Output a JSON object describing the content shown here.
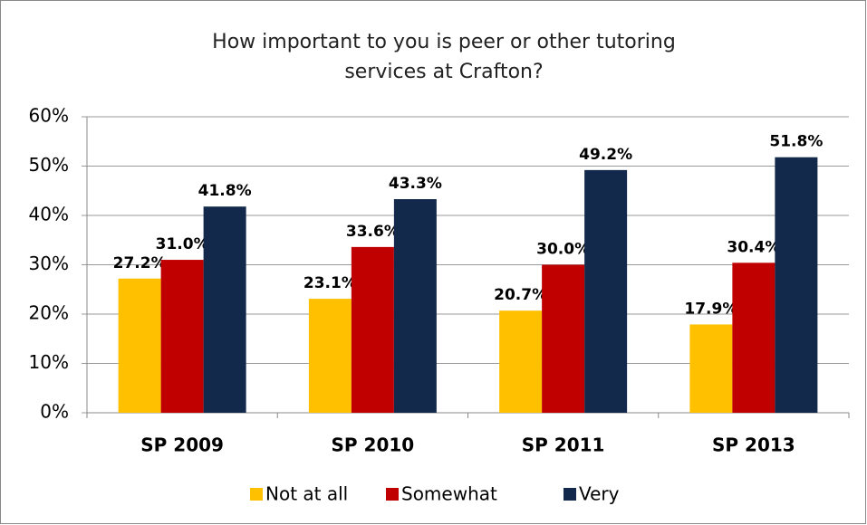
{
  "chart_data": {
    "type": "bar",
    "title": "How important to you is peer or other tutoring services at Crafton?",
    "categories": [
      "SP 2009",
      "SP 2010",
      "SP 2011",
      "SP 2013"
    ],
    "series": [
      {
        "name": "Not at all",
        "color": "#ffc000",
        "values": [
          27.2,
          23.1,
          20.7,
          17.9
        ],
        "value_labels": [
          "27.2%",
          "23.1%",
          "20.7%",
          "17.9%"
        ]
      },
      {
        "name": "Somewhat",
        "color": "#c00000",
        "values": [
          31.0,
          33.6,
          30.0,
          30.4
        ],
        "value_labels": [
          "31.0%",
          "33.6%",
          "30.0%",
          "30.4%"
        ]
      },
      {
        "name": "Very",
        "color": "#13294b",
        "values": [
          41.8,
          43.3,
          49.2,
          51.8
        ],
        "value_labels": [
          "41.8%",
          "43.3%",
          "49.2%",
          "51.8%"
        ]
      }
    ],
    "ylim": [
      0,
      60
    ],
    "yticks": [
      {
        "value": 0,
        "label": "0%"
      },
      {
        "value": 10,
        "label": "10%"
      },
      {
        "value": 20,
        "label": "20%"
      },
      {
        "value": 30,
        "label": "30%"
      },
      {
        "value": 40,
        "label": "40%"
      },
      {
        "value": 50,
        "label": "50%"
      },
      {
        "value": 60,
        "label": "60%"
      }
    ],
    "grid": true,
    "legend": "bottom"
  }
}
